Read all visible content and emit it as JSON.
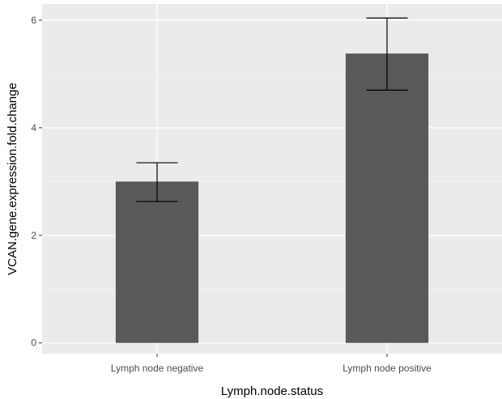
{
  "chart_data": {
    "type": "bar",
    "categories": [
      "Lymph node negative",
      "Lymph node positive"
    ],
    "values": [
      3.0,
      5.38
    ],
    "error_bars": {
      "lower": [
        2.63,
        4.7
      ],
      "upper": [
        3.35,
        6.04
      ]
    },
    "xlabel": "Lymph.node.status",
    "ylabel": "VCAN.gene.expression.fold.change",
    "ylim": [
      -0.2,
      6.3
    ],
    "yticks": [
      0,
      2,
      4,
      6
    ],
    "grid": true,
    "colors": {
      "panel": "#ebebeb",
      "grid_major": "#ffffff",
      "bar": "#595959",
      "errorbar": "#000000",
      "tick": "#333333"
    }
  }
}
